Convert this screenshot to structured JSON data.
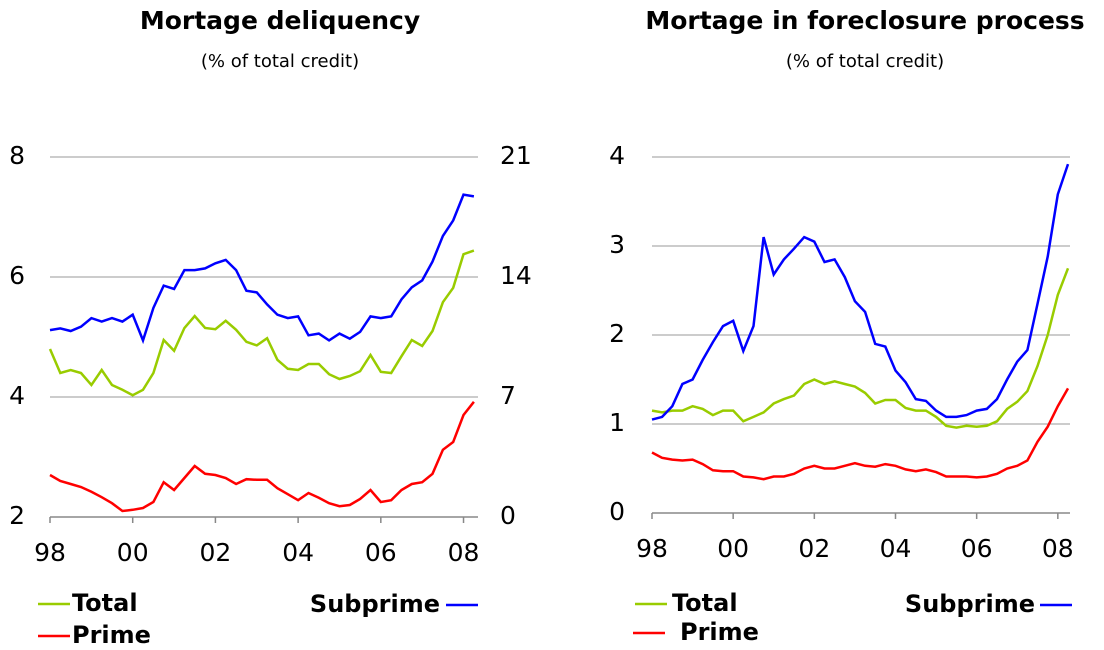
{
  "chart_data": [
    {
      "type": "line",
      "title": "Mortage deliquency",
      "subtitle": "(% of total credit)",
      "x": [
        1998,
        1998.25,
        1998.5,
        1998.75,
        1999,
        1999.25,
        1999.5,
        1999.75,
        2000,
        2000.25,
        2000.5,
        2000.75,
        2001,
        2001.25,
        2001.5,
        2001.75,
        2002,
        2002.25,
        2002.5,
        2002.75,
        2003,
        2003.25,
        2003.5,
        2003.75,
        2004,
        2004.25,
        2004.5,
        2004.75,
        2005,
        2005.25,
        2005.5,
        2005.75,
        2006,
        2006.25,
        2006.5,
        2006.75,
        2007,
        2007.25,
        2007.5,
        2007.75,
        2008,
        2008.25
      ],
      "xlim": [
        1998,
        2008.35
      ],
      "xticks": [
        {
          "value": 1998,
          "label": "98"
        },
        {
          "value": 2000,
          "label": "00"
        },
        {
          "value": 2002,
          "label": "02"
        },
        {
          "value": 2004,
          "label": "04"
        },
        {
          "value": 2006,
          "label": "06"
        },
        {
          "value": 2008,
          "label": "08"
        }
      ],
      "ylim": [
        2,
        8
      ],
      "yticks": [
        2,
        4,
        6,
        8
      ],
      "y2lim": [
        0,
        21
      ],
      "y2ticks": [
        0,
        7,
        14,
        21
      ],
      "grid": true,
      "series": [
        {
          "name": "Total",
          "color": "#99cc00",
          "values": [
            4.8,
            4.4,
            4.45,
            4.4,
            4.2,
            4.45,
            4.2,
            4.12,
            4.03,
            4.12,
            4.4,
            4.95,
            4.77,
            5.15,
            5.35,
            5.15,
            5.13,
            5.27,
            5.12,
            4.92,
            4.86,
            4.98,
            4.62,
            4.47,
            4.45,
            4.55,
            4.55,
            4.38,
            4.3,
            4.35,
            4.43,
            4.7,
            4.42,
            4.4,
            4.68,
            4.95,
            4.85,
            5.1,
            5.58,
            5.82,
            6.38,
            6.44
          ]
        },
        {
          "name": "Prime",
          "color": "#ff0000",
          "values": [
            2.7,
            2.6,
            2.55,
            2.5,
            2.42,
            2.33,
            2.23,
            2.1,
            2.12,
            2.15,
            2.25,
            2.58,
            2.45,
            2.65,
            2.85,
            2.72,
            2.7,
            2.65,
            2.55,
            2.63,
            2.62,
            2.62,
            2.48,
            2.38,
            2.28,
            2.4,
            2.32,
            2.23,
            2.18,
            2.2,
            2.3,
            2.45,
            2.25,
            2.28,
            2.45,
            2.55,
            2.58,
            2.72,
            3.12,
            3.25,
            3.7,
            3.92
          ]
        },
        {
          "name": "Subprime",
          "color": "#0000ff",
          "axis": "y2",
          "values": [
            10.9,
            11.0,
            10.85,
            11.1,
            11.6,
            11.4,
            11.6,
            11.4,
            11.8,
            10.3,
            12.2,
            13.5,
            13.3,
            14.4,
            14.4,
            14.5,
            14.8,
            15.0,
            14.4,
            13.2,
            13.1,
            12.4,
            11.8,
            11.6,
            11.7,
            10.6,
            10.7,
            10.3,
            10.7,
            10.4,
            10.8,
            11.7,
            11.6,
            11.7,
            12.7,
            13.4,
            13.8,
            14.9,
            16.4,
            17.3,
            18.8,
            18.7
          ]
        }
      ]
    },
    {
      "type": "line",
      "title": "Mortage in foreclosure process",
      "subtitle": "(% of total credit)",
      "x": [
        1998,
        1998.25,
        1998.5,
        1998.75,
        1999,
        1999.25,
        1999.5,
        1999.75,
        2000,
        2000.25,
        2000.5,
        2000.75,
        2001,
        2001.25,
        2001.5,
        2001.75,
        2002,
        2002.25,
        2002.5,
        2002.75,
        2003,
        2003.25,
        2003.5,
        2003.75,
        2004,
        2004.25,
        2004.5,
        2004.75,
        2005,
        2005.25,
        2005.5,
        2005.75,
        2006,
        2006.25,
        2006.5,
        2006.75,
        2007,
        2007.25,
        2007.5,
        2007.75,
        2008,
        2008.25
      ],
      "xlim": [
        1998,
        2008.3
      ],
      "xticks": [
        {
          "value": 1998,
          "label": "98"
        },
        {
          "value": 2000,
          "label": "00"
        },
        {
          "value": 2002,
          "label": "02"
        },
        {
          "value": 2004,
          "label": "04"
        },
        {
          "value": 2006,
          "label": "06"
        },
        {
          "value": 2008,
          "label": "08"
        }
      ],
      "ylim": [
        0,
        4
      ],
      "yticks": [
        0,
        1,
        2,
        3,
        4
      ],
      "grid": true,
      "series": [
        {
          "name": "Total",
          "color": "#99cc00",
          "values": [
            1.15,
            1.13,
            1.15,
            1.15,
            1.2,
            1.17,
            1.1,
            1.15,
            1.15,
            1.03,
            1.08,
            1.13,
            1.23,
            1.28,
            1.32,
            1.45,
            1.5,
            1.45,
            1.48,
            1.45,
            1.42,
            1.35,
            1.23,
            1.27,
            1.27,
            1.18,
            1.15,
            1.15,
            1.08,
            0.98,
            0.96,
            0.98,
            0.97,
            0.98,
            1.03,
            1.17,
            1.25,
            1.37,
            1.65,
            2.0,
            2.45,
            2.75
          ]
        },
        {
          "name": "Prime",
          "color": "#ff0000",
          "values": [
            0.68,
            0.62,
            0.6,
            0.59,
            0.6,
            0.55,
            0.48,
            0.47,
            0.47,
            0.41,
            0.4,
            0.38,
            0.41,
            0.41,
            0.44,
            0.5,
            0.53,
            0.5,
            0.5,
            0.53,
            0.56,
            0.53,
            0.52,
            0.55,
            0.53,
            0.49,
            0.47,
            0.49,
            0.46,
            0.41,
            0.41,
            0.41,
            0.4,
            0.41,
            0.44,
            0.5,
            0.53,
            0.59,
            0.8,
            0.97,
            1.2,
            1.4
          ]
        },
        {
          "name": "Subprime",
          "color": "#0000ff",
          "values": [
            1.05,
            1.08,
            1.2,
            1.45,
            1.5,
            1.72,
            1.92,
            2.1,
            2.16,
            1.82,
            2.1,
            3.1,
            2.68,
            2.85,
            2.97,
            3.1,
            3.05,
            2.82,
            2.85,
            2.65,
            2.38,
            2.26,
            1.9,
            1.87,
            1.6,
            1.47,
            1.28,
            1.26,
            1.15,
            1.08,
            1.08,
            1.1,
            1.15,
            1.17,
            1.28,
            1.5,
            1.7,
            1.83,
            2.35,
            2.88,
            3.58,
            3.92
          ]
        }
      ]
    }
  ]
}
